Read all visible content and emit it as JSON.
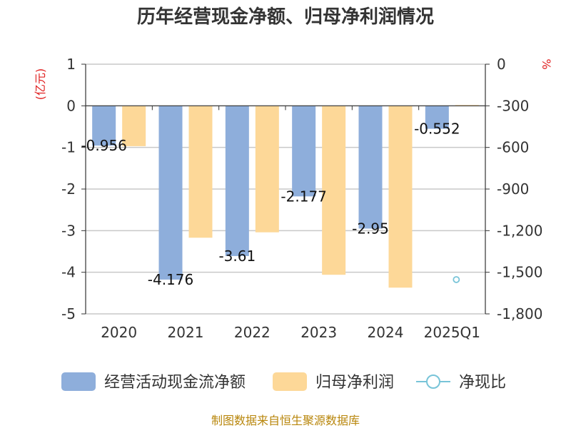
{
  "chart_data": {
    "type": "bar",
    "title": "历年经营现金净额、归母净利润情况",
    "categories": [
      "2020",
      "2021",
      "2022",
      "2023",
      "2024",
      "2025Q1"
    ],
    "y_left": {
      "unit_label": "(亿元)",
      "range": [
        -5,
        1
      ],
      "ticks": [
        1,
        0,
        -1,
        -2,
        -3,
        -4,
        -5
      ],
      "tick_labels": [
        "1",
        "0",
        "-1",
        "-2",
        "-3",
        "-4",
        "-5"
      ]
    },
    "y_right": {
      "unit_label": "%",
      "range": [
        -1800,
        0
      ],
      "ticks": [
        0,
        -300,
        -600,
        -900,
        -1200,
        -1500,
        -1800
      ],
      "tick_labels": [
        "0",
        "-300",
        "-600",
        "-900",
        "-1,200",
        "-1,500",
        "-1,800"
      ]
    },
    "grid": true,
    "legend_position": "bottom",
    "series": [
      {
        "name": "经营活动现金流净额",
        "kind": "bar",
        "axis": "left",
        "color": "#8eaedb",
        "values": [
          -0.956,
          -4.176,
          -3.61,
          -2.177,
          -2.95,
          -0.552
        ],
        "labels": [
          "-0.956",
          "-4.176",
          "-3.61",
          "-2.177",
          "-2.95",
          "-0.552"
        ]
      },
      {
        "name": "归母净利润",
        "kind": "bar",
        "axis": "left",
        "color": "#fdd898",
        "values": [
          -0.97,
          -3.17,
          -3.04,
          -4.06,
          -4.37,
          0.02
        ]
      },
      {
        "name": "净现比",
        "kind": "line",
        "axis": "right",
        "color": "#78c4d8",
        "values": [
          null,
          null,
          null,
          null,
          null,
          -1553
        ]
      }
    ],
    "source_note": "制图数据来自恒生聚源数据库"
  }
}
